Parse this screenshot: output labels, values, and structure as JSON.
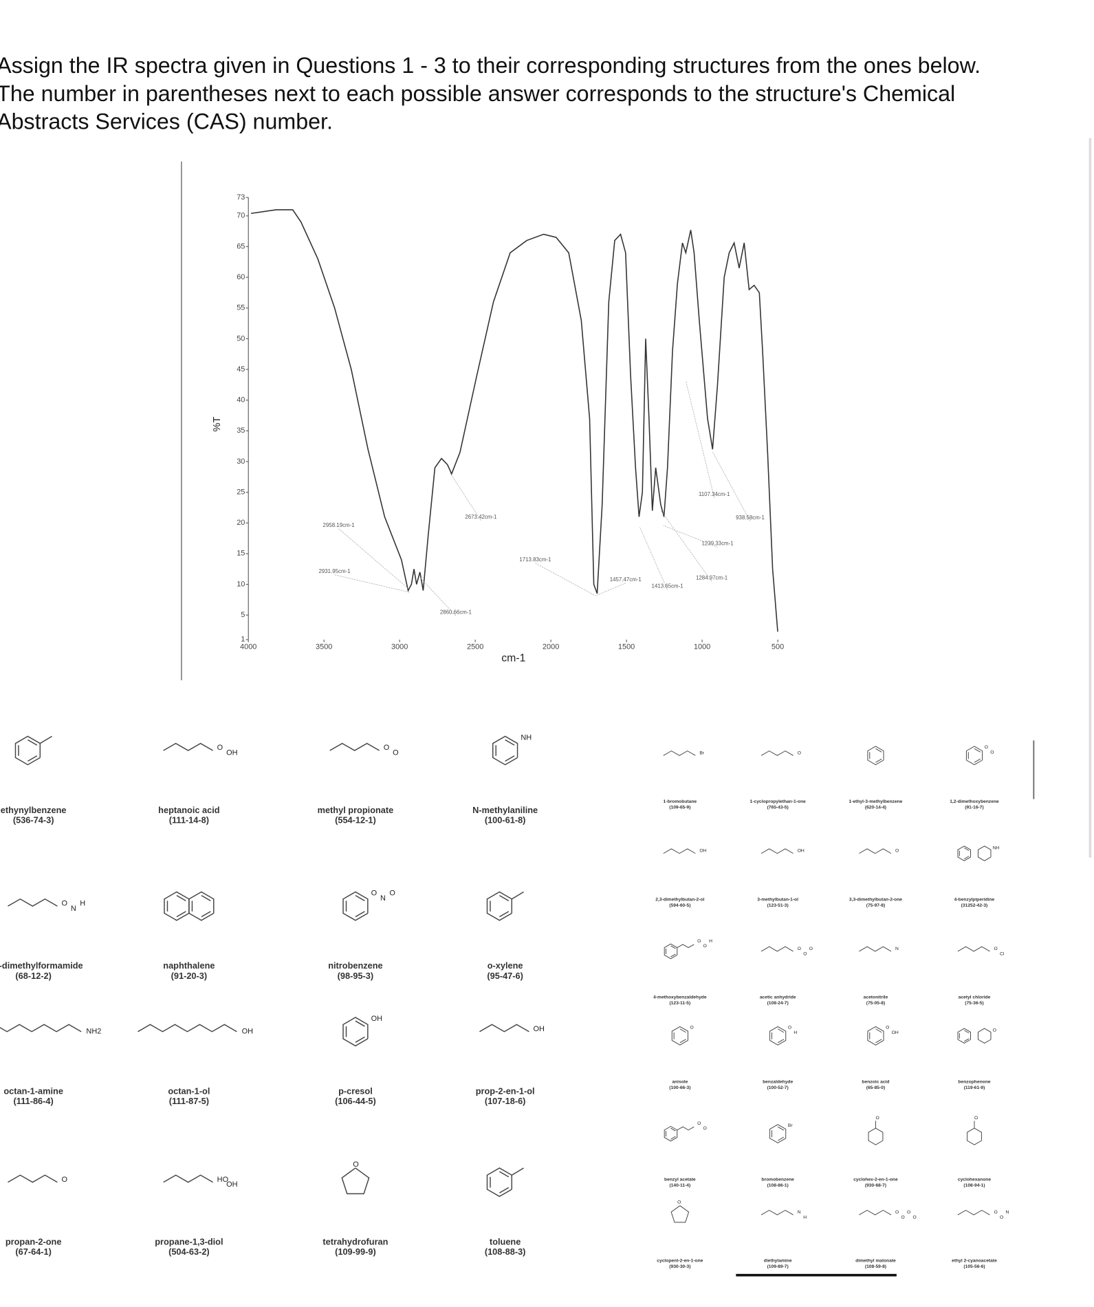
{
  "question": [
    "Assign the IR spectra given in Questions 1 - 3 to their corresponding structures from the ones below.",
    "The number in parentheses next to each possible answer corresponds to the structure's Chemical",
    "Abstracts Services (CAS) number."
  ],
  "chart_data": {
    "type": "line",
    "x_label": "cm-1",
    "y_label": "%T",
    "color": "#333333",
    "xlim": [
      4000,
      400
    ],
    "ylim": [
      1,
      73
    ],
    "xticks": [
      4000,
      3500,
      3000,
      2500,
      2000,
      1500,
      1000,
      500
    ],
    "yticks": [
      1,
      5,
      10,
      15,
      20,
      25,
      30,
      35,
      40,
      45,
      50,
      55,
      60,
      65,
      70,
      73
    ],
    "x": [
      3983,
      3817,
      3707,
      3652,
      3541,
      3430,
      3320,
      3209,
      3099,
      2988,
      2944,
      2922,
      2905,
      2888,
      2866,
      2844,
      2811,
      2767,
      2723,
      2684,
      2656,
      2601,
      2490,
      2380,
      2269,
      2159,
      2048,
      1965,
      1882,
      1799,
      1744,
      1716,
      1694,
      1661,
      1617,
      1578,
      1539,
      1506,
      1473,
      1440,
      1417,
      1395,
      1373,
      1351,
      1329,
      1307,
      1274,
      1252,
      1229,
      1196,
      1163,
      1130,
      1108,
      1075,
      1053,
      1019,
      964,
      931,
      898,
      854,
      821,
      788,
      755,
      722,
      689,
      656,
      622,
      600,
      567,
      534,
      500
    ],
    "values": [
      70.4,
      71,
      71,
      69,
      63,
      55,
      45,
      32,
      21,
      14,
      9,
      10,
      12.5,
      10,
      12,
      9,
      18,
      29,
      30.5,
      29.5,
      28,
      31.5,
      44,
      56,
      64,
      66,
      67,
      66.5,
      64,
      53,
      37,
      10,
      8.5,
      23,
      56,
      66,
      67,
      64,
      44,
      29,
      21,
      25,
      50,
      37,
      22,
      29,
      23,
      21,
      29,
      48,
      59,
      65.6,
      64,
      67.7,
      64,
      53,
      37,
      32,
      42.5,
      60,
      64,
      65.6,
      61.5,
      65.6,
      58,
      58.7,
      57.5,
      48,
      31.5,
      12.5,
      2.3
    ],
    "annotations": [
      "2958.19cm-1",
      "2931.95cm-1",
      "2673.42cm-1",
      "2860.66cm-1",
      "1713.83cm-1",
      "1457.47cm-1",
      "1413.65cm-1",
      "1107.34cm-1",
      "938.58cm-1",
      "1239.33cm-1",
      "1284.97cm-1"
    ]
  },
  "compounds_left": [
    {
      "name": "ethynylbenzene",
      "cas": "(536-74-3)",
      "labels": []
    },
    {
      "name": "heptanoic acid",
      "cas": "(111-14-8)",
      "labels": [
        "O",
        "OH"
      ]
    },
    {
      "name": "methyl propionate",
      "cas": "(554-12-1)",
      "labels": [
        "O",
        "O"
      ]
    },
    {
      "name": "N-methylaniline",
      "cas": "(100-61-8)",
      "labels": [
        "NH"
      ]
    },
    {
      "name": "N,N-dimethylformamide",
      "cas": "(68-12-2)",
      "labels": [
        "O",
        "N",
        "H"
      ]
    },
    {
      "name": "naphthalene",
      "cas": "(91-20-3)",
      "labels": []
    },
    {
      "name": "nitrobenzene",
      "cas": "(98-95-3)",
      "labels": [
        "O",
        "N",
        "O"
      ]
    },
    {
      "name": "o-xylene",
      "cas": "(95-47-6)",
      "labels": []
    },
    {
      "name": "octan-1-amine",
      "cas": "(111-86-4)",
      "labels": [
        "NH2"
      ]
    },
    {
      "name": "octan-1-ol",
      "cas": "(111-87-5)",
      "labels": [
        "OH"
      ]
    },
    {
      "name": "p-cresol",
      "cas": "(106-44-5)",
      "labels": [
        "OH"
      ]
    },
    {
      "name": "prop-2-en-1-ol",
      "cas": "(107-18-6)",
      "labels": [
        "OH"
      ]
    },
    {
      "name": "propan-2-one",
      "cas": "(67-64-1)",
      "labels": [
        "O"
      ]
    },
    {
      "name": "propane-1,3-diol",
      "cas": "(504-63-2)",
      "labels": [
        "HO",
        "OH"
      ]
    },
    {
      "name": "tetrahydrofuran",
      "cas": "(109-99-9)",
      "labels": [
        "O"
      ]
    },
    {
      "name": "toluene",
      "cas": "(108-88-3)",
      "labels": []
    }
  ],
  "compounds_right": [
    {
      "name": "1-bromobutane",
      "cas": "(109-65-9)",
      "labels": [
        "Br"
      ]
    },
    {
      "name": "1-cyclopropylethan-1-one",
      "cas": "(765-43-5)",
      "labels": [
        "O"
      ]
    },
    {
      "name": "1-ethyl-3-methylbenzene",
      "cas": "(620-14-4)",
      "labels": []
    },
    {
      "name": "1,2-dimethoxybenzene",
      "cas": "(91-16-7)",
      "labels": [
        "O",
        "O"
      ]
    },
    {
      "name": "2,3-dimethylbutan-2-ol",
      "cas": "(594-60-5)",
      "labels": [
        "OH"
      ]
    },
    {
      "name": "3-methylbutan-1-ol",
      "cas": "(123-51-3)",
      "labels": [
        "OH"
      ]
    },
    {
      "name": "3,3-dimethylbutan-2-one",
      "cas": "(75-97-8)",
      "labels": [
        "O"
      ]
    },
    {
      "name": "4-benzylpiperidine",
      "cas": "(31252-42-3)",
      "labels": [
        "NH"
      ]
    },
    {
      "name": "4-methoxybenzaldehyde",
      "cas": "(123-11-5)",
      "labels": [
        "O",
        "O",
        "H"
      ]
    },
    {
      "name": "acetic anhydride",
      "cas": "(108-24-7)",
      "labels": [
        "O",
        "O",
        "O"
      ]
    },
    {
      "name": "acetonitrile",
      "cas": "(75-05-8)",
      "labels": [
        "N"
      ]
    },
    {
      "name": "acetyl chloride",
      "cas": "(75-36-5)",
      "labels": [
        "O",
        "Cl"
      ]
    },
    {
      "name": "anisole",
      "cas": "(100-66-3)",
      "labels": [
        "O"
      ]
    },
    {
      "name": "benzaldehyde",
      "cas": "(100-52-7)",
      "labels": [
        "O",
        "H"
      ]
    },
    {
      "name": "benzoic acid",
      "cas": "(65-85-0)",
      "labels": [
        "O",
        "OH"
      ]
    },
    {
      "name": "benzophenone",
      "cas": "(119-61-9)",
      "labels": [
        "O"
      ]
    },
    {
      "name": "benzyl acetate",
      "cas": "(140-11-4)",
      "labels": [
        "O",
        "O"
      ]
    },
    {
      "name": "bromobenzene",
      "cas": "(108-86-1)",
      "labels": [
        "Br"
      ]
    },
    {
      "name": "cyclohex-2-en-1-one",
      "cas": "(930-68-7)",
      "labels": [
        "O"
      ]
    },
    {
      "name": "cyclohexanone",
      "cas": "(108-94-1)",
      "labels": [
        "O"
      ]
    },
    {
      "name": "cyclopent-2-en-1-one",
      "cas": "(930-30-3)",
      "labels": [
        "O"
      ]
    },
    {
      "name": "diethylamine",
      "cas": "(109-89-7)",
      "labels": [
        "N",
        "H"
      ]
    },
    {
      "name": "dimethyl malonate",
      "cas": "(108-59-8)",
      "labels": [
        "O",
        "O",
        "O",
        "O"
      ]
    },
    {
      "name": "ethyl 2-cyanoacetate",
      "cas": "(105-56-6)",
      "labels": [
        "O",
        "O",
        "N"
      ]
    }
  ]
}
